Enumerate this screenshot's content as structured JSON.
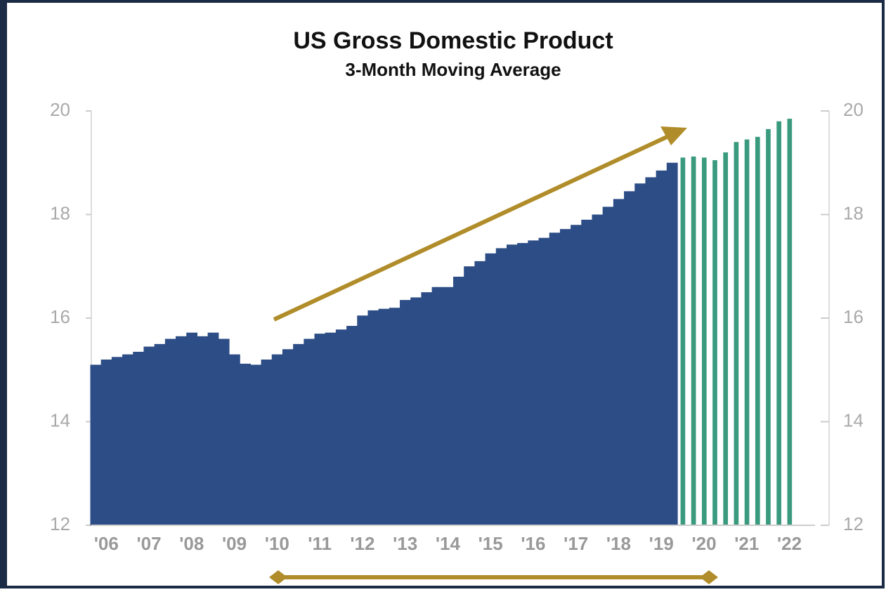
{
  "chart_data": {
    "type": "bar",
    "title": "US Gross Domestic Product",
    "subtitle": "3-Month Moving Average",
    "xlim": [
      2005.65,
      2022.6
    ],
    "xticks": [
      {
        "value": 2006,
        "label": "'06"
      },
      {
        "value": 2007,
        "label": "'07"
      },
      {
        "value": 2008,
        "label": "'08"
      },
      {
        "value": 2009,
        "label": "'09"
      },
      {
        "value": 2010,
        "label": "'10"
      },
      {
        "value": 2011,
        "label": "'11"
      },
      {
        "value": 2012,
        "label": "'12"
      },
      {
        "value": 2013,
        "label": "'13"
      },
      {
        "value": 2014,
        "label": "'14"
      },
      {
        "value": 2015,
        "label": "'15"
      },
      {
        "value": 2016,
        "label": "'16"
      },
      {
        "value": 2017,
        "label": "'17"
      },
      {
        "value": 2018,
        "label": "'18"
      },
      {
        "value": 2019,
        "label": "'19"
      },
      {
        "value": 2020,
        "label": "'20"
      },
      {
        "value": 2021,
        "label": "'21"
      },
      {
        "value": 2022,
        "label": "'22"
      }
    ],
    "ylim": [
      12,
      20
    ],
    "yticks": [
      12,
      14,
      16,
      18,
      20
    ],
    "y2lim": [
      12,
      20
    ],
    "y2ticks": [
      12,
      14,
      16,
      18,
      20
    ],
    "series": [
      {
        "color": "#2d4d86",
        "bar_width": 0.25,
        "x": [
          2005.75,
          2006,
          2006.25,
          2006.5,
          2006.75,
          2007,
          2007.25,
          2007.5,
          2007.75,
          2008,
          2008.25,
          2008.5,
          2008.75,
          2009,
          2009.25,
          2009.5,
          2009.75,
          2010,
          2010.25,
          2010.5,
          2010.75,
          2011,
          2011.25,
          2011.5,
          2011.75,
          2012,
          2012.25,
          2012.5,
          2012.75,
          2013,
          2013.25,
          2013.5,
          2013.75,
          2014,
          2014.25,
          2014.5,
          2014.75,
          2015,
          2015.25,
          2015.5,
          2015.75,
          2016,
          2016.25,
          2016.5,
          2016.75,
          2017,
          2017.25,
          2017.5,
          2017.75,
          2018,
          2018.25,
          2018.5,
          2018.75,
          2019,
          2019.25
        ],
        "values": [
          15.1,
          15.2,
          15.25,
          15.3,
          15.35,
          15.45,
          15.5,
          15.6,
          15.65,
          15.72,
          15.65,
          15.72,
          15.6,
          15.3,
          15.12,
          15.1,
          15.2,
          15.3,
          15.4,
          15.5,
          15.6,
          15.7,
          15.72,
          15.78,
          15.85,
          16.05,
          16.15,
          16.18,
          16.2,
          16.35,
          16.4,
          16.5,
          16.6,
          16.6,
          16.8,
          17.0,
          17.1,
          17.25,
          17.35,
          17.42,
          17.45,
          17.5,
          17.55,
          17.65,
          17.72,
          17.8,
          17.9,
          18.0,
          18.15,
          18.3,
          18.45,
          18.6,
          18.72,
          18.85,
          19.0
        ]
      },
      {
        "color": "#3a9a7e",
        "bar_width": 0.1,
        "x": [
          2019.5,
          2019.75,
          2020,
          2020.25,
          2020.5,
          2020.75,
          2021,
          2021.25,
          2021.5,
          2021.75,
          2022
        ],
        "values": [
          19.1,
          19.12,
          19.1,
          19.05,
          19.2,
          19.4,
          19.45,
          19.5,
          19.65,
          19.8,
          19.85
        ]
      }
    ]
  }
}
